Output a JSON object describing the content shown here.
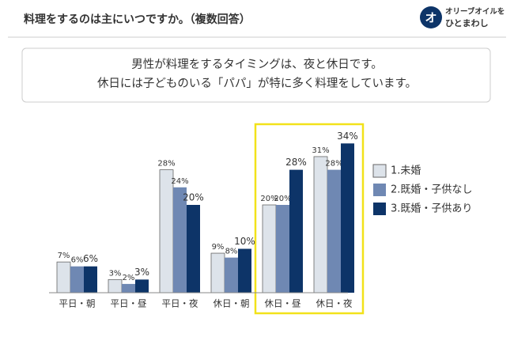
{
  "header": {
    "title": "料理をするのは主にいつですか。（複数回答）",
    "brand": [
      "オリーブオイルを",
      "ひとまわし"
    ]
  },
  "callout": [
    "男性が料理をするタイミングは、夜と休日です。",
    "休日には子どものいる「パパ」が特に多く料理をしています。"
  ],
  "chart_data": {
    "type": "bar",
    "categories": [
      "平日・朝",
      "平日・昼",
      "平日・夜",
      "休日・朝",
      "休日・昼",
      "休日・夜"
    ],
    "series": [
      {
        "name": "1.未婚",
        "color": "#dde3ea",
        "values": [
          7,
          3,
          28,
          9,
          20,
          31
        ],
        "value_labels": [
          "7%",
          "3%",
          "28%",
          "9%",
          "20%",
          "31%"
        ]
      },
      {
        "name": "2.既婚・子供なし",
        "color": "#6f88b3",
        "values": [
          6,
          2,
          24,
          8,
          20,
          28
        ],
        "value_labels": [
          "6%",
          "2%",
          "24%",
          "8%",
          "20%",
          "28%"
        ]
      },
      {
        "name": "3.既婚・子供あり",
        "color": "#0d3468",
        "values": [
          6,
          3,
          20,
          10,
          28,
          34
        ],
        "value_labels": [
          "6%",
          "3%",
          "20%",
          "10%",
          "28%",
          "34%"
        ]
      }
    ],
    "legend": "right"
  }
}
